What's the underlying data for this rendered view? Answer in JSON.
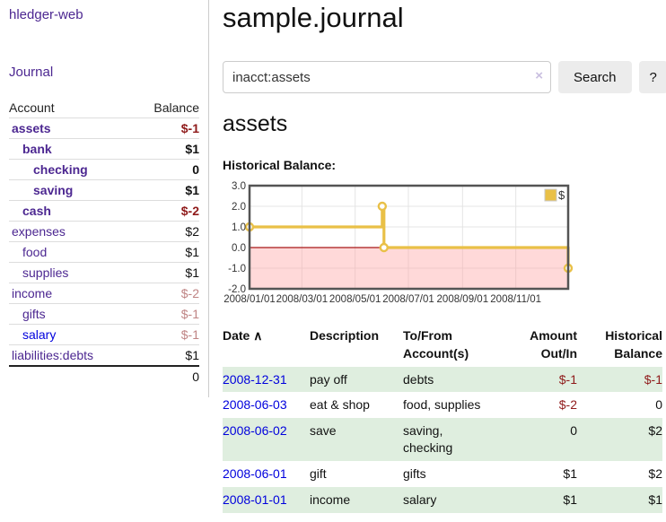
{
  "app_title": "hledger-web",
  "colors": {
    "accent_purple": "#4c2791",
    "link_blue": "#0000dd",
    "negative_red": "#8f1a1a",
    "negative_muted_red": "#bf8484",
    "stripe_green": "#dfeedf",
    "series_gold": "#e9c047",
    "chart_negative_fill": "#f9d8d8",
    "zero_line": "#a81717"
  },
  "sidebar": {
    "journal_link": "Journal",
    "accounts": {
      "col_account": "Account",
      "col_balance": "Balance",
      "rows": [
        {
          "name": "assets",
          "balance": "$-1",
          "level": 1,
          "matched": true,
          "value_style": "neg"
        },
        {
          "name": "bank",
          "balance": "$1",
          "level": 2,
          "matched": true,
          "value_style": "pos"
        },
        {
          "name": "checking",
          "balance": "0",
          "level": 3,
          "matched": true,
          "value_style": "pos"
        },
        {
          "name": "saving",
          "balance": "$1",
          "level": 3,
          "matched": true,
          "value_style": "pos"
        },
        {
          "name": "cash",
          "balance": "$-2",
          "level": 2,
          "matched": true,
          "value_style": "neg"
        },
        {
          "name": "expenses",
          "balance": "$2",
          "level": 1,
          "matched": false,
          "value_style": "pos"
        },
        {
          "name": "food",
          "balance": "$1",
          "level": 2,
          "matched": false,
          "value_style": "pos"
        },
        {
          "name": "supplies",
          "balance": "$1",
          "level": 2,
          "matched": false,
          "value_style": "pos"
        },
        {
          "name": "income",
          "balance": "$-2",
          "level": 1,
          "matched": false,
          "value_style": "neg-muted"
        },
        {
          "name": "gifts",
          "balance": "$-1",
          "level": 2,
          "matched": false,
          "value_style": "neg-muted"
        },
        {
          "name": "salary",
          "balance": "$-1",
          "level": 2,
          "matched": false,
          "value_style": "neg-muted",
          "link_style": "unvisited"
        },
        {
          "name": "liabilities:debts",
          "balance": "$1",
          "level": 1,
          "matched": false,
          "value_style": "pos"
        }
      ],
      "total": "0"
    }
  },
  "main": {
    "page_title": "sample.journal",
    "search": {
      "value": "inacct:assets",
      "clear_icon": "×",
      "search_button": "Search",
      "help_button": "?"
    },
    "account_heading": "assets",
    "chart_heading": "Historical Balance:"
  },
  "chart_data": {
    "type": "line",
    "title": "Historical Balance:",
    "step": true,
    "ylim": [
      -2.0,
      3.0
    ],
    "ytick_labels": [
      "3.0",
      "2.0",
      "1.0",
      "0.0",
      "-1.0",
      "-2.0"
    ],
    "ytick_values": [
      3,
      2,
      1,
      0,
      -1,
      -2
    ],
    "xtick_labels": [
      "2008/01/01",
      "2008/03/01",
      "2008/05/01",
      "2008/07/01",
      "2008/09/01",
      "2008/11/01"
    ],
    "grid": true,
    "legend": {
      "label": "$",
      "position": "top-right"
    },
    "series": [
      {
        "name": "$",
        "points": [
          {
            "x": "2008-01-01",
            "y": 1
          },
          {
            "x": "2008-06-01",
            "y": 2
          },
          {
            "x": "2008-06-03",
            "y": 0
          },
          {
            "x": "2008-12-31",
            "y": -1
          }
        ]
      }
    ]
  },
  "register_table": {
    "headers": [
      {
        "lines": [
          "Date"
        ],
        "sort": "∧",
        "align": "left"
      },
      {
        "lines": [
          "Description"
        ],
        "align": "left"
      },
      {
        "lines": [
          "To/From",
          "Account(s)"
        ],
        "align": "left"
      },
      {
        "lines": [
          "Amount",
          "Out/In"
        ],
        "align": "right"
      },
      {
        "lines": [
          "Historical",
          "Balance"
        ],
        "align": "right"
      }
    ],
    "rows": [
      {
        "date": "2008-12-31",
        "description": "pay off",
        "accounts": "debts",
        "amount": "$-1",
        "amount_neg": true,
        "balance": "$-1",
        "balance_neg": true
      },
      {
        "date": "2008-06-03",
        "description": "eat & shop",
        "accounts": "food, supplies",
        "amount": "$-2",
        "amount_neg": true,
        "balance": "0",
        "balance_neg": false
      },
      {
        "date": "2008-06-02",
        "description": "save",
        "accounts": "saving, checking",
        "amount": "0",
        "amount_neg": false,
        "balance": "$2",
        "balance_neg": false
      },
      {
        "date": "2008-06-01",
        "description": "gift",
        "accounts": "gifts",
        "amount": "$1",
        "amount_neg": false,
        "balance": "$2",
        "balance_neg": false
      },
      {
        "date": "2008-01-01",
        "description": "income",
        "accounts": "salary",
        "amount": "$1",
        "amount_neg": false,
        "balance": "$1",
        "balance_neg": false
      }
    ]
  }
}
